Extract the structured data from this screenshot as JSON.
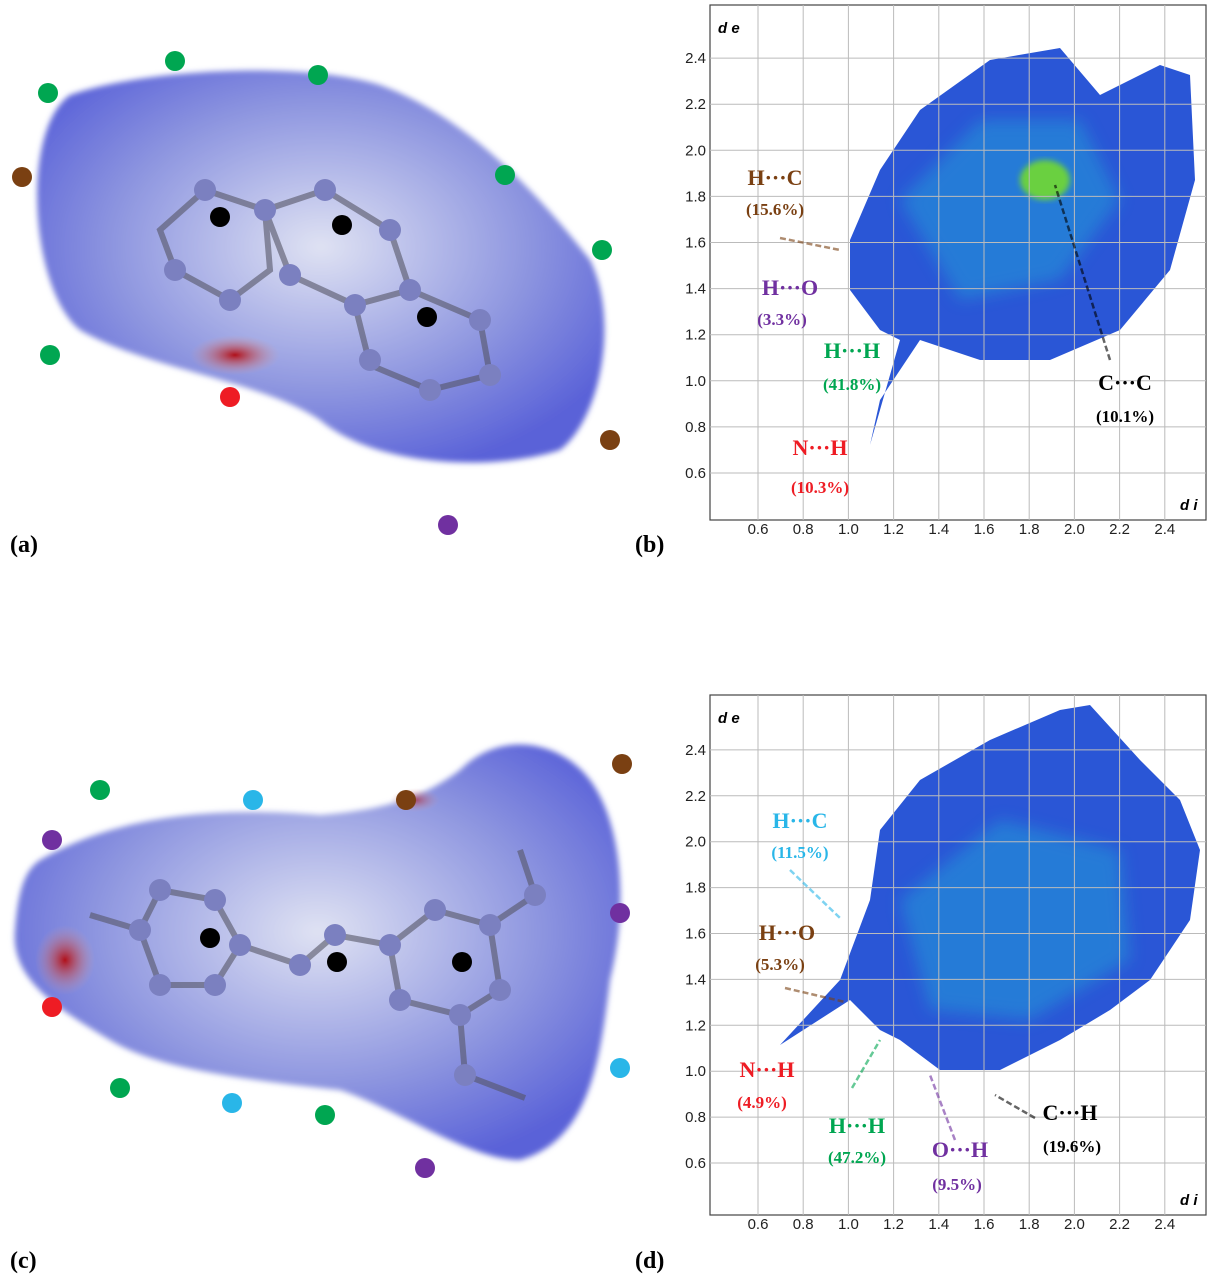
{
  "panels": [
    {
      "label": "(a)"
    },
    {
      "label": "(b)",
      "ylabel": "d e",
      "xlabel": "d i",
      "yticks": [
        "0.6",
        "0.8",
        "1.0",
        "1.2",
        "1.4",
        "1.6",
        "1.8",
        "2.0",
        "2.2",
        "2.4"
      ],
      "xticks": [
        "0.6",
        "0.8",
        "1.0",
        "1.2",
        "1.4",
        "1.6",
        "1.8",
        "2.0",
        "2.2",
        "2.4"
      ],
      "annotations": [
        {
          "contact": "H···C",
          "percent": "(15.6%)",
          "color": "#7a4012"
        },
        {
          "contact": "H···O",
          "percent": "(3.3%)",
          "color": "#7030a0"
        },
        {
          "contact": "H···H",
          "percent": "(41.8%)",
          "color": "#00a651"
        },
        {
          "contact": "N···H",
          "percent": "(10.3%)",
          "color": "#ee1c24"
        },
        {
          "contact": "C···C",
          "percent": "(10.1%)",
          "color": "#000000"
        }
      ]
    },
    {
      "label": "(c)"
    },
    {
      "label": "(d)",
      "ylabel": "d e",
      "xlabel": "d i",
      "yticks": [
        "0.6",
        "0.8",
        "1.0",
        "1.2",
        "1.4",
        "1.6",
        "1.8",
        "2.0",
        "2.2",
        "2.4"
      ],
      "xticks": [
        "0.6",
        "0.8",
        "1.0",
        "1.2",
        "1.4",
        "1.6",
        "1.8",
        "2.0",
        "2.2",
        "2.4"
      ],
      "annotations": [
        {
          "contact": "H···C",
          "percent": "(11.5%)",
          "color": "#29b6e8"
        },
        {
          "contact": "H···O",
          "percent": "(5.3%)",
          "color": "#7a4012"
        },
        {
          "contact": "N···H",
          "percent": "(4.9%)",
          "color": "#ee1c24"
        },
        {
          "contact": "H···H",
          "percent": "(47.2%)",
          "color": "#00a651"
        },
        {
          "contact": "O···H",
          "percent": "(9.5%)",
          "color": "#7030a0"
        },
        {
          "contact": "C···H",
          "percent": "(19.6%)",
          "color": "#000000"
        }
      ]
    }
  ]
}
